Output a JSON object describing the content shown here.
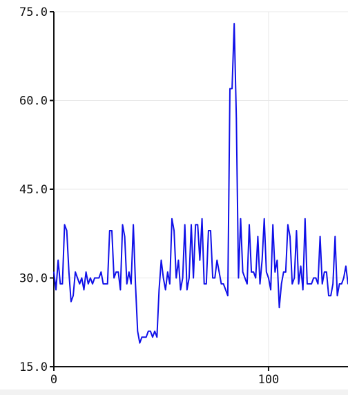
{
  "chart_data": {
    "type": "line",
    "title": "",
    "xlabel": "",
    "ylabel": "",
    "xlim": [
      0,
      137
    ],
    "ylim": [
      15,
      75
    ],
    "x_ticks": [
      0,
      100
    ],
    "x_tick_labels": [
      "0",
      "100"
    ],
    "y_ticks": [
      15,
      30,
      45,
      60,
      75
    ],
    "y_tick_labels": [
      "15.0",
      "30.0",
      "45.0",
      "60.0",
      "75.0"
    ],
    "grid": true,
    "legend": "none",
    "colors": {
      "line": "#1010e8",
      "grid": "#e8e8e8",
      "axis": "#111111"
    },
    "series": [
      {
        "x": [
          0,
          1,
          2,
          3,
          4,
          5,
          6,
          7,
          8,
          9,
          10,
          11,
          12,
          13,
          14,
          15,
          16,
          17,
          18,
          19,
          20,
          21,
          22,
          23,
          24,
          25,
          26,
          27,
          28,
          29,
          30,
          31,
          32,
          33,
          34,
          35,
          36,
          37,
          38,
          39,
          40,
          41,
          42,
          43,
          44,
          45,
          46,
          47,
          48,
          49,
          50,
          51,
          52,
          53,
          54,
          55,
          56,
          57,
          58,
          59,
          60,
          61,
          62,
          63,
          64,
          65,
          66,
          67,
          68,
          69,
          70,
          71,
          72,
          73,
          74,
          75,
          76,
          77,
          78,
          79,
          80,
          81,
          82,
          83,
          84,
          85,
          86,
          87,
          88,
          89,
          90,
          91,
          92,
          93,
          94,
          95,
          96,
          97,
          98,
          99,
          100,
          101,
          102,
          103,
          104,
          105,
          106,
          107,
          108,
          109,
          110,
          111,
          112,
          113,
          114,
          115,
          116,
          117,
          118,
          119,
          120,
          121,
          122,
          123,
          124,
          125,
          126,
          127,
          128,
          129,
          130,
          131,
          132,
          133,
          134,
          135,
          136,
          137
        ],
        "values": [
          31,
          28,
          33,
          29,
          29,
          39,
          38,
          31,
          26,
          27,
          31,
          30,
          29,
          30,
          28,
          31,
          29,
          30,
          29,
          30,
          30,
          30,
          31,
          29,
          29,
          29,
          38,
          38,
          30,
          31,
          31,
          28,
          39,
          37,
          29,
          31,
          29,
          39,
          29,
          21,
          19,
          20,
          20,
          20,
          21,
          21,
          20,
          21,
          20,
          28,
          33,
          30,
          28,
          31,
          29,
          40,
          38,
          30,
          33,
          28,
          30,
          39,
          28,
          30,
          39,
          30,
          39,
          39,
          33,
          40,
          29,
          29,
          38,
          38,
          30,
          30,
          33,
          31,
          29,
          29,
          28,
          27,
          62,
          62,
          73,
          57,
          30,
          40,
          31,
          30,
          29,
          39,
          31,
          31,
          30,
          37,
          29,
          33,
          40,
          31,
          30,
          28,
          39,
          31,
          33,
          25,
          29,
          31,
          31,
          39,
          37,
          29,
          30,
          38,
          29,
          32,
          28,
          40,
          29,
          29,
          29,
          30,
          30,
          29,
          37,
          29,
          31,
          31,
          27,
          27,
          29,
          37,
          27,
          29,
          29,
          30,
          32,
          29
        ]
      }
    ]
  }
}
